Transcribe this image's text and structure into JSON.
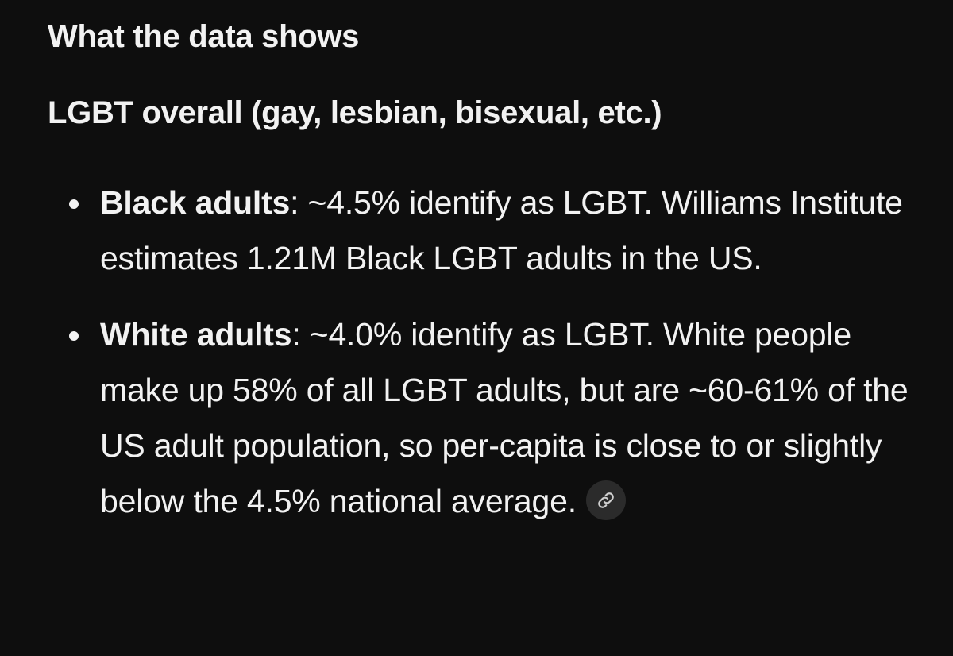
{
  "section_heading": "What the data shows",
  "subheading": "LGBT overall (gay, lesbian, bisexual, etc.)",
  "bullets": [
    {
      "term": "Black adults",
      "text": ": ~4.5% identify as LGBT. Williams Institute estimates 1.21M Black LGBT adults in the US."
    },
    {
      "term": "White adults",
      "text": ": ~4.0% identify as LGBT. White people make up 58% of all LGBT adults, but are ~60-61% of the US adult population, so per-capita is close to or slightly below the 4.5% national average."
    }
  ],
  "icons": {
    "source_link": "link-icon"
  },
  "colors": {
    "background": "#0e0e0e",
    "text": "#f2f2f2",
    "chip": "#2b2b2b"
  }
}
